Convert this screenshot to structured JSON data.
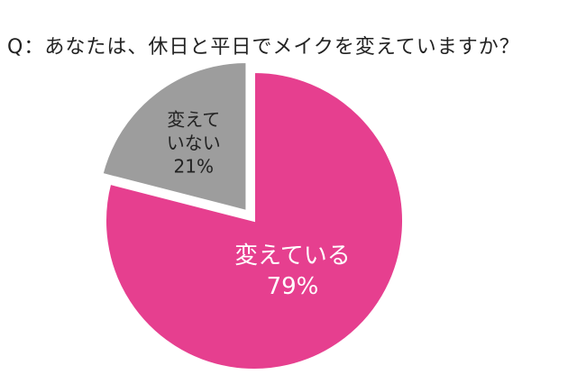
{
  "chart_data": {
    "type": "pie",
    "title": "Q：あなたは、休日と平日でメイクを変えていますか？",
    "start_angle_deg": 0,
    "direction": "clockwise",
    "slices": [
      {
        "label_lines": [
          "変えている"
        ],
        "value": 79,
        "value_label": "79%",
        "color": "#e63f8f",
        "text_color": "#ffffff",
        "exploded": false
      },
      {
        "label_lines": [
          "変えて",
          "いない"
        ],
        "value": 21,
        "value_label": "21%",
        "color": "#9d9d9d",
        "text_color": "#222222",
        "exploded": true
      }
    ]
  }
}
